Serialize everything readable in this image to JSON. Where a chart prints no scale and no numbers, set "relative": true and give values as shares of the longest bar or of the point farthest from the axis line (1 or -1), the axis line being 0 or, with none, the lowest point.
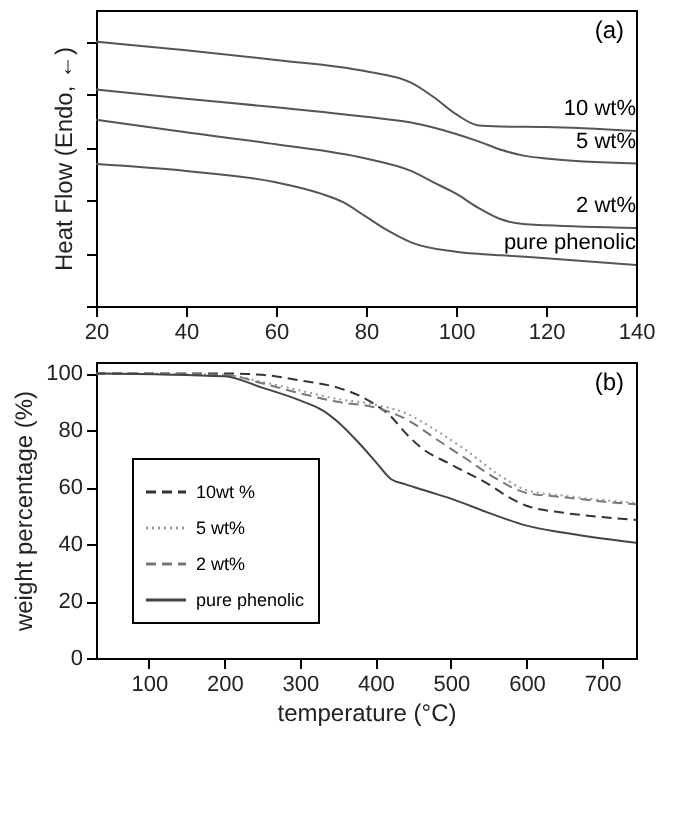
{
  "chart_data": [
    {
      "type": "line",
      "relative": true,
      "ylabel": "Heat Flow (Endo, ←)",
      "annotations": [
        "(a)"
      ],
      "xlim": [
        20,
        140
      ],
      "xticks": [
        20,
        40,
        60,
        80,
        100,
        120,
        140
      ],
      "tick_labels": "x",
      "line_style": "solid",
      "series": [
        {
          "name": "10 wt%",
          "color": "#555555",
          "x": [
            20,
            40,
            60,
            80,
            90,
            95,
            100,
            105,
            110,
            120,
            140
          ],
          "values": [
            1.0,
            0.968,
            0.931,
            0.888,
            0.845,
            0.791,
            0.726,
            0.683,
            0.679,
            0.677,
            0.662
          ]
        },
        {
          "name": "5 wt%",
          "color": "#555555",
          "x": [
            20,
            40,
            60,
            80,
            90,
            100,
            105,
            110,
            115,
            120,
            140
          ],
          "values": [
            0.819,
            0.784,
            0.752,
            0.716,
            0.694,
            0.651,
            0.623,
            0.591,
            0.569,
            0.558,
            0.539
          ]
        },
        {
          "name": "2 wt%",
          "color": "#555555",
          "x": [
            20,
            40,
            60,
            80,
            90,
            95,
            100,
            105,
            110,
            115,
            120,
            140
          ],
          "values": [
            0.705,
            0.657,
            0.612,
            0.558,
            0.511,
            0.468,
            0.425,
            0.371,
            0.328,
            0.31,
            0.306,
            0.295
          ]
        },
        {
          "name": "pure phenolic",
          "color": "#555555",
          "x": [
            20,
            40,
            60,
            70,
            75,
            80,
            85,
            90,
            100,
            110,
            120,
            140
          ],
          "values": [
            0.537,
            0.511,
            0.468,
            0.425,
            0.392,
            0.338,
            0.284,
            0.241,
            0.205,
            0.192,
            0.181,
            0.155
          ]
        }
      ]
    },
    {
      "type": "line",
      "xlabel": "temperature (°C)",
      "ylabel": "weight percentage (%)",
      "annotations": [
        "(b)"
      ],
      "xlim": [
        30,
        745
      ],
      "xticks": [
        100,
        200,
        300,
        400,
        500,
        600,
        700
      ],
      "ylim": [
        0,
        104
      ],
      "yticks": [
        0,
        20,
        40,
        60,
        80,
        100
      ],
      "legend": "bottom left",
      "series": [
        {
          "name": "10wt %",
          "color": "#333333",
          "line_style": "dashed",
          "x": [
            30,
            200,
            250,
            300,
            350,
            380,
            400,
            420,
            440,
            460,
            500,
            550,
            580,
            600,
            650,
            700,
            745
          ],
          "values": [
            100,
            100,
            99.5,
            97.5,
            95,
            92,
            89,
            85,
            79,
            74,
            68,
            61,
            56,
            53.5,
            51,
            49.5,
            48.5
          ]
        },
        {
          "name": "5 wt%",
          "color": "#999999",
          "line_style": "dotted",
          "x": [
            30,
            200,
            250,
            300,
            350,
            400,
            440,
            480,
            520,
            560,
            600,
            650,
            700,
            745
          ],
          "values": [
            100,
            99.5,
            97,
            94,
            91,
            89,
            86,
            80,
            73,
            65,
            59,
            57,
            55.5,
            54.5
          ]
        },
        {
          "name": "2 wt%",
          "color": "#777777",
          "line_style": "dashed",
          "x": [
            30,
            200,
            250,
            300,
            350,
            400,
            440,
            480,
            520,
            560,
            600,
            650,
            700,
            745
          ],
          "values": [
            100,
            99.5,
            96.5,
            93,
            90,
            88,
            84,
            77,
            70,
            63,
            58,
            56.5,
            55,
            54
          ]
        },
        {
          "name": "pure phenolic",
          "color": "#444444",
          "line_style": "solid",
          "x": [
            30,
            200,
            250,
            300,
            330,
            350,
            380,
            400,
            420,
            440,
            470,
            500,
            550,
            600,
            650,
            700,
            745
          ],
          "values": [
            100,
            99,
            95,
            90.5,
            87,
            83,
            75,
            69,
            63,
            61,
            58.5,
            56,
            51,
            46.5,
            44,
            42,
            40.5
          ]
        }
      ]
    }
  ]
}
